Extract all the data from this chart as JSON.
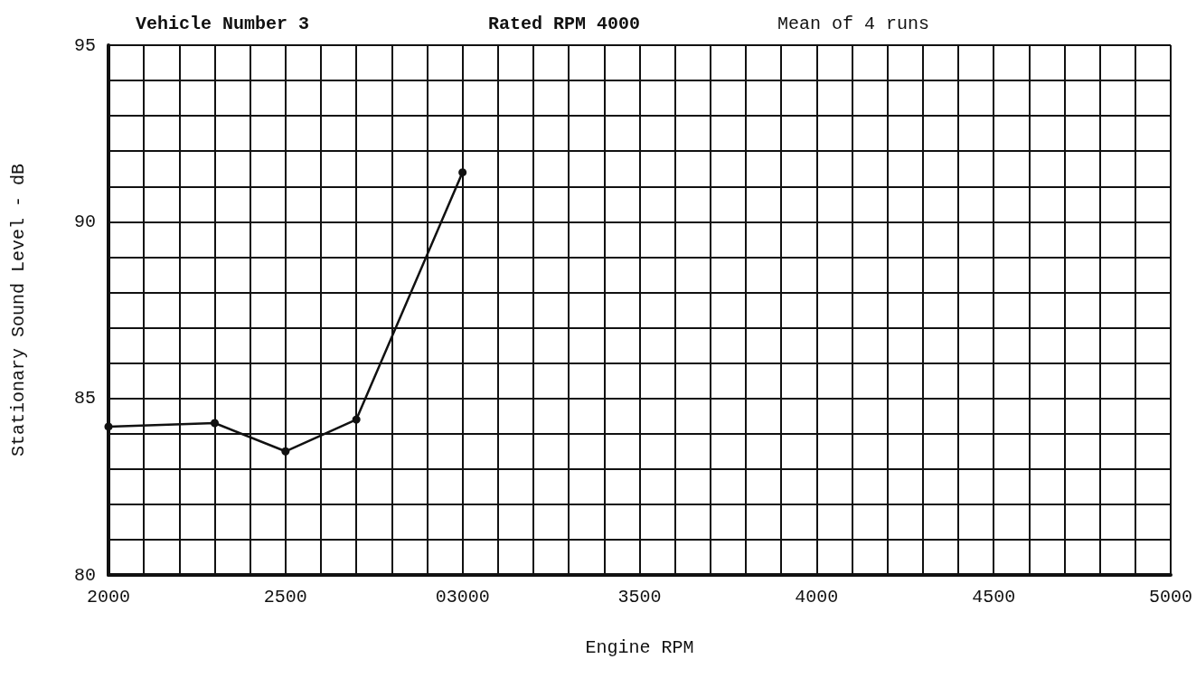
{
  "chart_data": {
    "type": "line",
    "title": "Vehicle Number 3",
    "subtitle": "Rated RPM 4000",
    "annotations": [
      "Mean of 4 runs"
    ],
    "xlabel": "Engine RPM",
    "ylabel": "Stationary Sound Level - dB",
    "x": [
      2000,
      2300,
      2500,
      2700,
      3000
    ],
    "series": [
      {
        "color": "#111111",
        "values": [
          84.2,
          84.3,
          83.5,
          84.4,
          91.4
        ]
      }
    ],
    "xlim": [
      2000,
      5000
    ],
    "xticks": [
      2000,
      {
        "value": 2100,
        "label": null
      },
      {
        "value": 2200,
        "label": null
      },
      {
        "value": 2300,
        "label": null
      },
      {
        "value": 2400,
        "label": null
      },
      2500,
      {
        "value": 2600,
        "label": null
      },
      {
        "value": 2700,
        "label": null
      },
      {
        "value": 2800,
        "label": null
      },
      {
        "value": 2900,
        "label": null
      },
      {
        "value": 3000,
        "label": "03000"
      },
      {
        "value": 3100,
        "label": null
      },
      {
        "value": 3200,
        "label": null
      },
      {
        "value": 3300,
        "label": null
      },
      {
        "value": 3400,
        "label": null
      },
      3500,
      {
        "value": 3600,
        "label": null
      },
      {
        "value": 3700,
        "label": null
      },
      {
        "value": 3800,
        "label": null
      },
      {
        "value": 3900,
        "label": null
      },
      4000,
      {
        "value": 4100,
        "label": null
      },
      {
        "value": 4200,
        "label": null
      },
      {
        "value": 4300,
        "label": null
      },
      {
        "value": 4400,
        "label": null
      },
      4500,
      {
        "value": 4600,
        "label": null
      },
      {
        "value": 4700,
        "label": null
      },
      {
        "value": 4800,
        "label": null
      },
      {
        "value": 4900,
        "label": null
      },
      5000
    ],
    "ylim": [
      80,
      95
    ],
    "yticks": [
      80,
      {
        "value": 81,
        "label": null
      },
      {
        "value": 82,
        "label": null
      },
      {
        "value": 83,
        "label": null
      },
      {
        "value": 84,
        "label": null
      },
      85,
      {
        "value": 86,
        "label": null
      },
      {
        "value": 87,
        "label": null
      },
      {
        "value": 88,
        "label": null
      },
      {
        "value": 89,
        "label": null
      },
      90,
      {
        "value": 91,
        "label": null
      },
      {
        "value": 92,
        "label": null
      },
      {
        "value": 93,
        "label": null
      },
      {
        "value": 94,
        "label": null
      },
      95
    ],
    "grid": true,
    "marker": "circle",
    "line_style": "solid"
  }
}
